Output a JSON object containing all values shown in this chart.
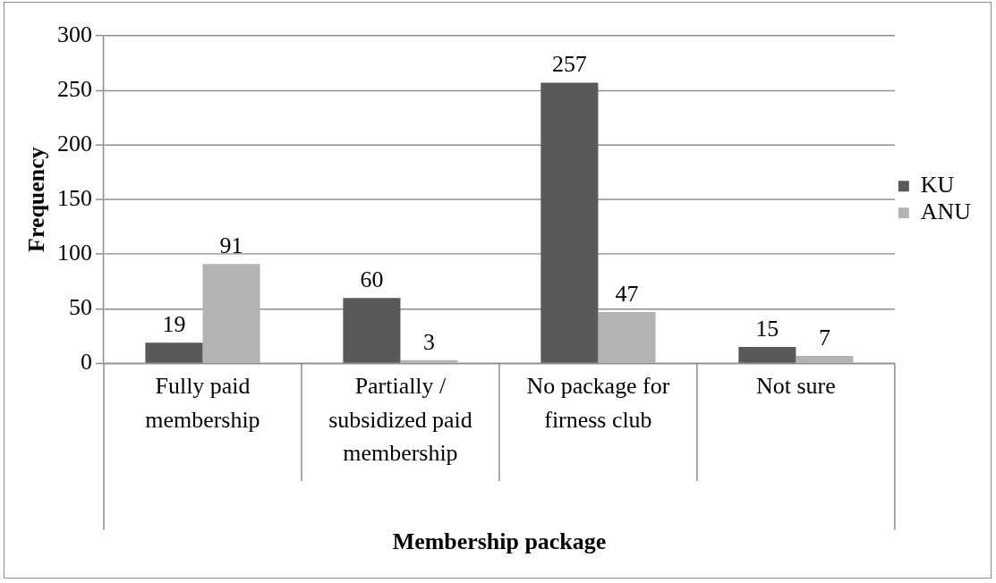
{
  "chart_data": {
    "type": "bar",
    "xlabel": "Membership package",
    "ylabel": "Frequency",
    "categories": [
      "Fully paid membership",
      "Partially / subsidized paid membership",
      "No package for firness club",
      "Not sure"
    ],
    "series": [
      {
        "name": "KU",
        "color": "#595959",
        "values": [
          19,
          60,
          257,
          15
        ]
      },
      {
        "name": "ANU",
        "color": "#b3b3b3",
        "values": [
          91,
          3,
          47,
          7
        ]
      }
    ],
    "ylim": [
      0,
      300
    ],
    "yticks": [
      0,
      50,
      100,
      150,
      200,
      250,
      300
    ],
    "grid": "y",
    "legend": "right",
    "data_labels": true
  }
}
